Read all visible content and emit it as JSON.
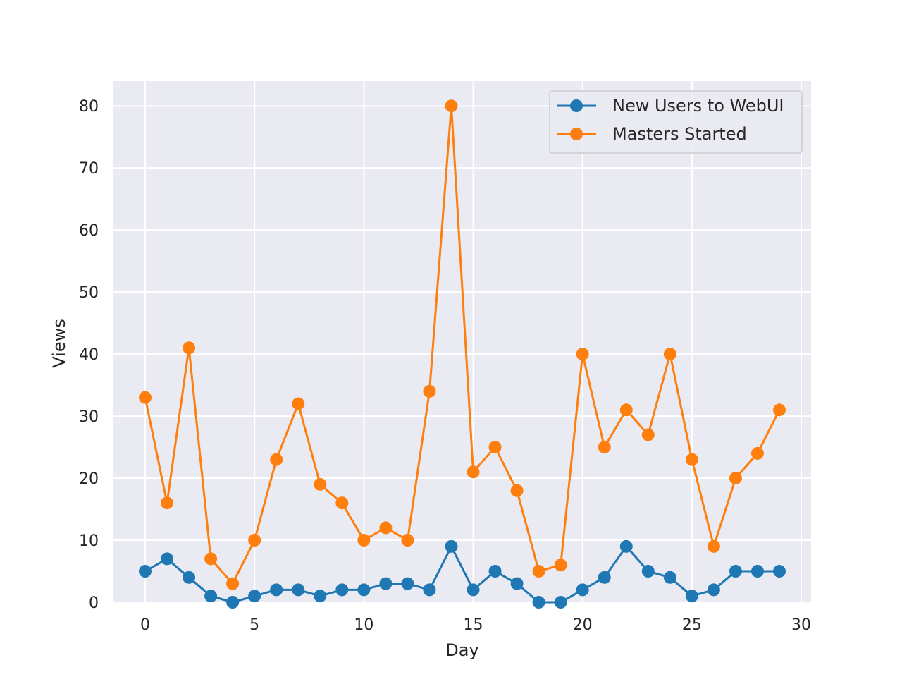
{
  "chart_data": {
    "type": "line",
    "title": "",
    "xlabel": "Day",
    "ylabel": "Views",
    "x": [
      0,
      1,
      2,
      3,
      4,
      5,
      6,
      7,
      8,
      9,
      10,
      11,
      12,
      13,
      14,
      15,
      16,
      17,
      18,
      19,
      20,
      21,
      22,
      23,
      24,
      25,
      26,
      27,
      28,
      29
    ],
    "series": [
      {
        "name": "New Users to WebUI",
        "color": "#1f77b4",
        "marker": "circle",
        "values": [
          5,
          7,
          4,
          1,
          0,
          1,
          2,
          2,
          1,
          2,
          2,
          3,
          3,
          2,
          9,
          2,
          5,
          3,
          0,
          0,
          2,
          4,
          9,
          5,
          4,
          1,
          2,
          5,
          5,
          5
        ]
      },
      {
        "name": "Masters Started",
        "color": "#ff7f0e",
        "marker": "circle",
        "values": [
          33,
          16,
          41,
          7,
          3,
          10,
          23,
          32,
          19,
          16,
          10,
          12,
          10,
          34,
          80,
          21,
          25,
          18,
          5,
          6,
          40,
          25,
          31,
          27,
          40,
          23,
          9,
          20,
          24,
          31
        ]
      }
    ],
    "xlim": [
      -1.45,
      30.45
    ],
    "ylim": [
      0,
      84
    ],
    "x_ticks": [
      "0",
      "5",
      "10",
      "15",
      "20",
      "25",
      "30"
    ],
    "y_ticks": [
      "0",
      "10",
      "20",
      "30",
      "40",
      "50",
      "60",
      "70",
      "80"
    ],
    "grid": true,
    "legend_position": "upper right",
    "plot_background": "#eaeaf2",
    "grid_color": "#ffffff"
  }
}
